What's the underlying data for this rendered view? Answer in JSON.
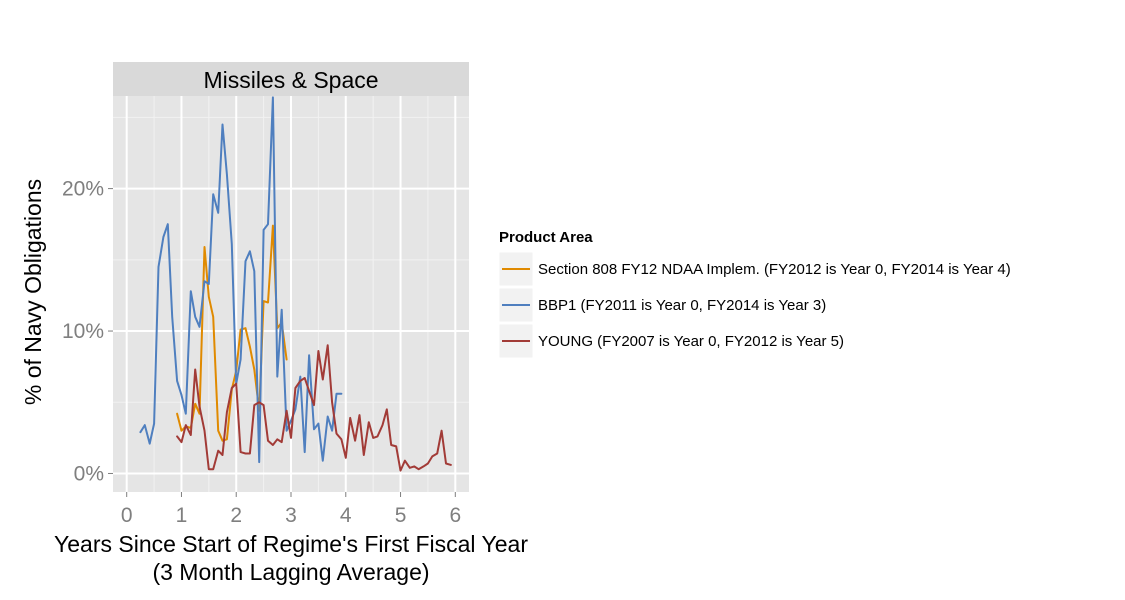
{
  "chart_data": {
    "type": "line",
    "title": "",
    "facet": "Missiles & Space",
    "xlabel": "Years Since Start of Regime's First Fiscal Year",
    "xlabel_line2": "(3 Month Lagging Average)",
    "ylabel": "% of Navy Obligations",
    "xlim": [
      -0.25,
      6.25
    ],
    "ylim": [
      -1.3,
      26.5
    ],
    "x_ticks": [
      0,
      1,
      2,
      3,
      4,
      5,
      6
    ],
    "x_tick_labels": [
      "0",
      "1",
      "2",
      "3",
      "4",
      "5",
      "6"
    ],
    "y_ticks": [
      0,
      10,
      20
    ],
    "y_tick_labels": [
      "0%",
      "10%",
      "20%"
    ],
    "grid": true,
    "legend_title": "Product Area",
    "legend_position": "right",
    "series": [
      {
        "name": "Section 808 FY12 NDAA Implem. (FY2012 is Year 0, FY2014 is Year 4)",
        "color": "#E08A00",
        "x": [
          0.92,
          1.0,
          1.08,
          1.17,
          1.25,
          1.33,
          1.42,
          1.5,
          1.58,
          1.67,
          1.75,
          1.83,
          1.92,
          2.0,
          2.08,
          2.17,
          2.25,
          2.33,
          2.42,
          2.5,
          2.58,
          2.67,
          2.75,
          2.83,
          2.92
        ],
        "y": [
          4.2,
          3.0,
          3.3,
          3.2,
          4.9,
          4.2,
          15.9,
          12.4,
          11.0,
          3.0,
          2.3,
          2.4,
          5.9,
          7.2,
          10.1,
          10.2,
          8.9,
          7.3,
          4.4,
          12.1,
          12.0,
          17.4,
          10.2,
          10.6,
          8.0
        ]
      },
      {
        "name": "BBP1 (FY2011 is Year 0, FY2014 is Year 3)",
        "color": "#4F7FBF",
        "x": [
          0.25,
          0.33,
          0.42,
          0.5,
          0.58,
          0.67,
          0.75,
          0.83,
          0.92,
          1.0,
          1.08,
          1.17,
          1.25,
          1.33,
          1.42,
          1.5,
          1.58,
          1.67,
          1.75,
          1.83,
          1.92,
          2.0,
          2.08,
          2.17,
          2.25,
          2.33,
          2.42,
          2.5,
          2.58,
          2.67,
          2.75,
          2.83,
          2.92,
          3.0,
          3.08,
          3.17,
          3.25,
          3.33,
          3.42,
          3.5,
          3.58,
          3.67,
          3.75,
          3.83,
          3.92
        ],
        "y": [
          2.9,
          3.4,
          2.1,
          3.5,
          14.5,
          16.6,
          17.5,
          11.0,
          6.5,
          5.5,
          4.2,
          12.8,
          11.0,
          10.3,
          13.5,
          13.3,
          19.6,
          18.3,
          24.5,
          21.0,
          16.1,
          6.3,
          8.0,
          14.9,
          15.6,
          14.2,
          0.8,
          17.1,
          17.5,
          26.4,
          6.8,
          11.5,
          3.0,
          3.7,
          4.5,
          6.8,
          1.5,
          8.3,
          3.1,
          3.5,
          0.9,
          4.0,
          3.0,
          5.6,
          5.6
        ]
      },
      {
        "name": "YOUNG (FY2007 is Year 0, FY2012 is Year 5)",
        "color": "#A23B37",
        "x": [
          0.92,
          1.0,
          1.08,
          1.17,
          1.25,
          1.33,
          1.42,
          1.5,
          1.58,
          1.67,
          1.75,
          1.83,
          1.92,
          2.0,
          2.08,
          2.17,
          2.25,
          2.33,
          2.42,
          2.5,
          2.58,
          2.67,
          2.75,
          2.83,
          2.92,
          3.0,
          3.08,
          3.17,
          3.25,
          3.33,
          3.42,
          3.5,
          3.58,
          3.67,
          3.75,
          3.83,
          3.92,
          4.0,
          4.08,
          4.17,
          4.25,
          4.33,
          4.42,
          4.5,
          4.58,
          4.67,
          4.75,
          4.83,
          4.92,
          5.0,
          5.08,
          5.17,
          5.25,
          5.33,
          5.42,
          5.5,
          5.58,
          5.67,
          5.75,
          5.83,
          5.92
        ],
        "y": [
          2.6,
          2.2,
          3.4,
          2.7,
          7.3,
          4.7,
          3.0,
          0.3,
          0.3,
          1.6,
          1.3,
          4.3,
          6.0,
          6.3,
          1.5,
          1.4,
          1.4,
          4.8,
          5.0,
          4.8,
          2.3,
          2.0,
          2.4,
          2.2,
          4.4,
          2.5,
          6.0,
          6.5,
          6.7,
          5.8,
          4.8,
          8.6,
          6.6,
          9.0,
          5.0,
          2.8,
          2.4,
          1.1,
          3.9,
          2.3,
          4.1,
          1.3,
          3.6,
          2.5,
          2.6,
          3.4,
          4.5,
          2.0,
          1.9,
          0.2,
          0.9,
          0.4,
          0.5,
          0.3,
          0.5,
          0.7,
          1.2,
          1.4,
          3.0,
          0.7,
          0.6
        ]
      }
    ]
  }
}
